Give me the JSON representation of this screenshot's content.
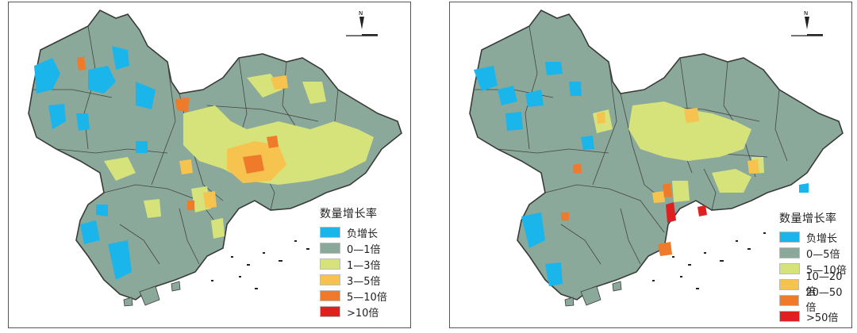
{
  "maps": [
    {
      "legend": {
        "title": "数量增长率",
        "items": [
          {
            "label": "负增长",
            "color": "#1ab5ea"
          },
          {
            "label": "0—1倍",
            "color": "#8aa99a"
          },
          {
            "label": "1—3倍",
            "color": "#d6e27a"
          },
          {
            "label": "3—5倍",
            "color": "#f6c34f"
          },
          {
            "label": "5—10倍",
            "color": "#ee7a2a"
          },
          {
            "label": ">10倍",
            "color": "#e02020"
          }
        ]
      }
    },
    {
      "legend": {
        "title": "数量增长率",
        "items": [
          {
            "label": "负增长",
            "color": "#1ab5ea"
          },
          {
            "label": "0—5倍",
            "color": "#8aa99a"
          },
          {
            "label": "5—10倍",
            "color": "#d6e27a"
          },
          {
            "label": "10—20倍",
            "color": "#f6c34f"
          },
          {
            "label": "20—50倍",
            "color": "#ee7a2a"
          },
          {
            "label": ">50倍",
            "color": "#e02020"
          }
        ]
      }
    }
  ],
  "north_label": "N",
  "colors": {
    "region": "#8aa99a",
    "outline": "#3a3a3a",
    "sea": "#ffffff"
  }
}
